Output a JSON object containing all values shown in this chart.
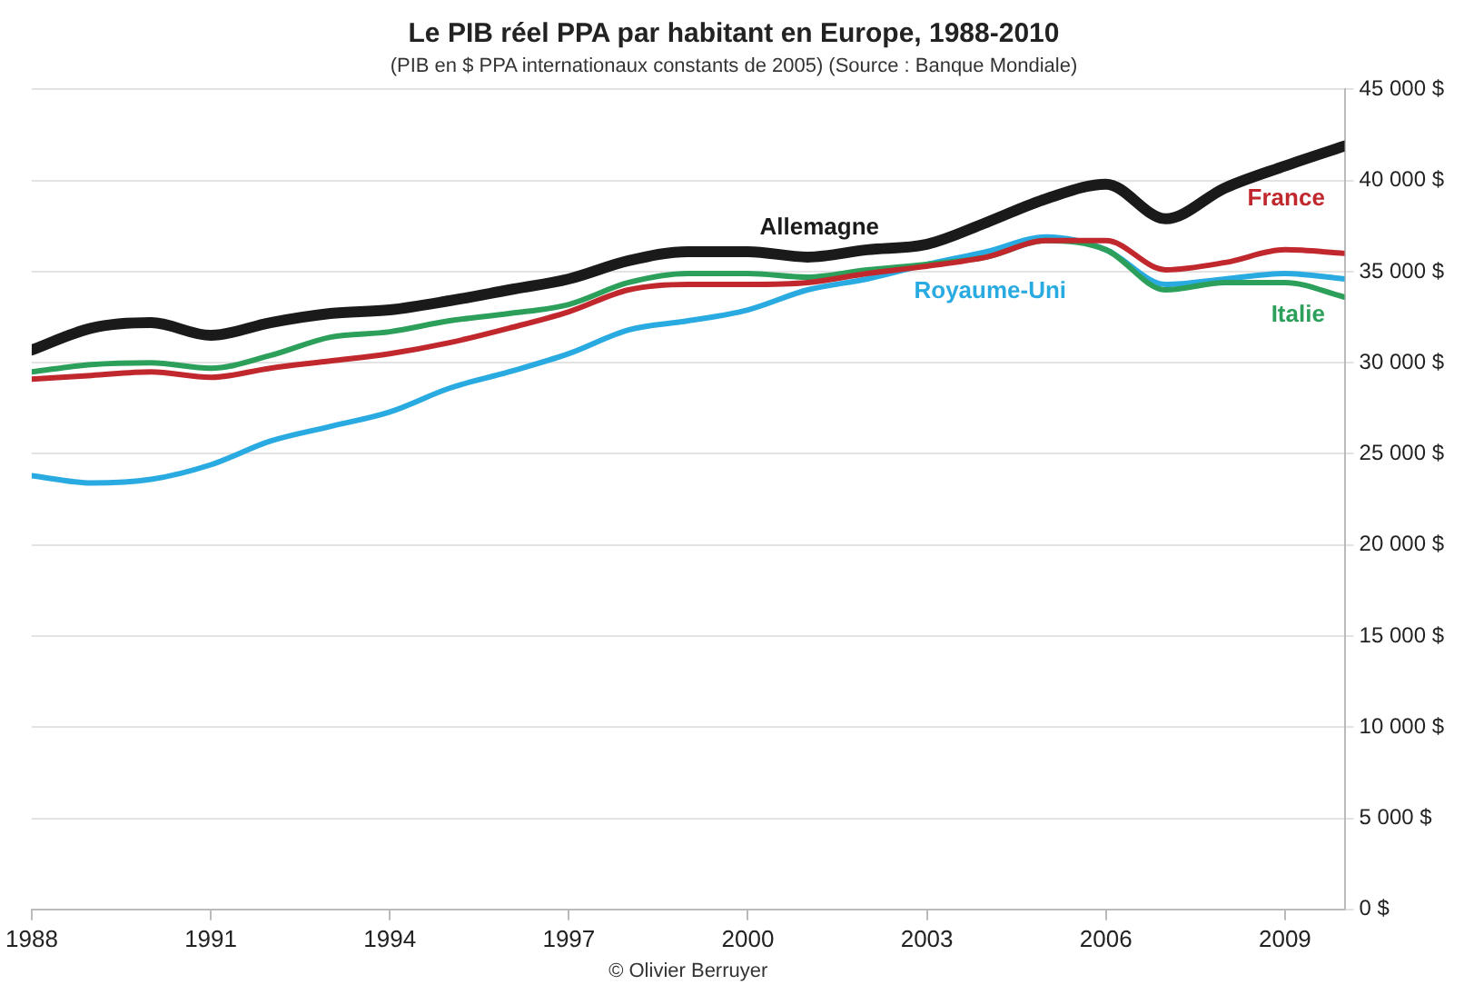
{
  "chart_data": {
    "type": "line",
    "title": "Le PIB réel PPA par habitant en Europe, 1988-2010",
    "subtitle": "(PIB en $ PPA internationaux constants de 2005) (Source : Banque Mondiale)",
    "x": [
      1988,
      1989,
      1990,
      1991,
      1992,
      1993,
      1994,
      1995,
      1996,
      1997,
      1998,
      1999,
      2000,
      2001,
      2002,
      2003,
      2004,
      2005,
      2006,
      2007,
      2008,
      2009,
      2010
    ],
    "series": [
      {
        "name": "Allemagne",
        "color": "#1a1a1a",
        "values": [
          30700,
          31900,
          32200,
          31500,
          32200,
          32700,
          32900,
          33400,
          34000,
          34600,
          35600,
          36100,
          36100,
          35800,
          36200,
          36500,
          37700,
          39000,
          39800,
          37900,
          39600,
          40800,
          41900
        ]
      },
      {
        "name": "France",
        "color": "#c0282d",
        "values": [
          29100,
          29300,
          29500,
          29200,
          29700,
          30100,
          30500,
          31100,
          31900,
          32800,
          34000,
          34300,
          34300,
          34400,
          34900,
          35300,
          35800,
          36700,
          36700,
          35100,
          35500,
          36200,
          36000
        ]
      },
      {
        "name": "Italie",
        "color": "#2ca05a",
        "values": [
          29500,
          29900,
          30000,
          29700,
          30400,
          31400,
          31700,
          32300,
          32700,
          33200,
          34400,
          34900,
          34900,
          34700,
          35100,
          35400,
          35800,
          36700,
          36200,
          34000,
          34400,
          34400,
          33600
        ]
      },
      {
        "name": "Royaume-Uni",
        "color": "#29abe2",
        "values": [
          23800,
          23400,
          23600,
          24400,
          25700,
          26500,
          27300,
          28600,
          29500,
          30500,
          31800,
          32300,
          32900,
          34000,
          34600,
          35400,
          36100,
          36900,
          36200,
          34300,
          34600,
          34900,
          34600
        ]
      }
    ],
    "xlim": [
      1988,
      2010
    ],
    "xticks": [
      1988,
      1991,
      1994,
      1997,
      2000,
      2003,
      2006,
      2009
    ],
    "ylim": [
      0,
      45000
    ],
    "yticks": [
      {
        "value": 0,
        "label": "0 $"
      },
      {
        "value": 5000,
        "label": "5 000 $"
      },
      {
        "value": 10000,
        "label": "10 000 $"
      },
      {
        "value": 15000,
        "label": "15 000 $"
      },
      {
        "value": 20000,
        "label": "20 000 $"
      },
      {
        "value": 25000,
        "label": "25 000 $"
      },
      {
        "value": 30000,
        "label": "30 000 $"
      },
      {
        "value": 35000,
        "label": "35 000 $"
      },
      {
        "value": 40000,
        "label": "40 000 $"
      },
      {
        "value": 45000,
        "label": "45 000 $"
      }
    ],
    "grid": "y",
    "legend": false,
    "marker": "none",
    "line_style": "solid",
    "annotations": [
      "© Olivier Berruyer"
    ]
  }
}
